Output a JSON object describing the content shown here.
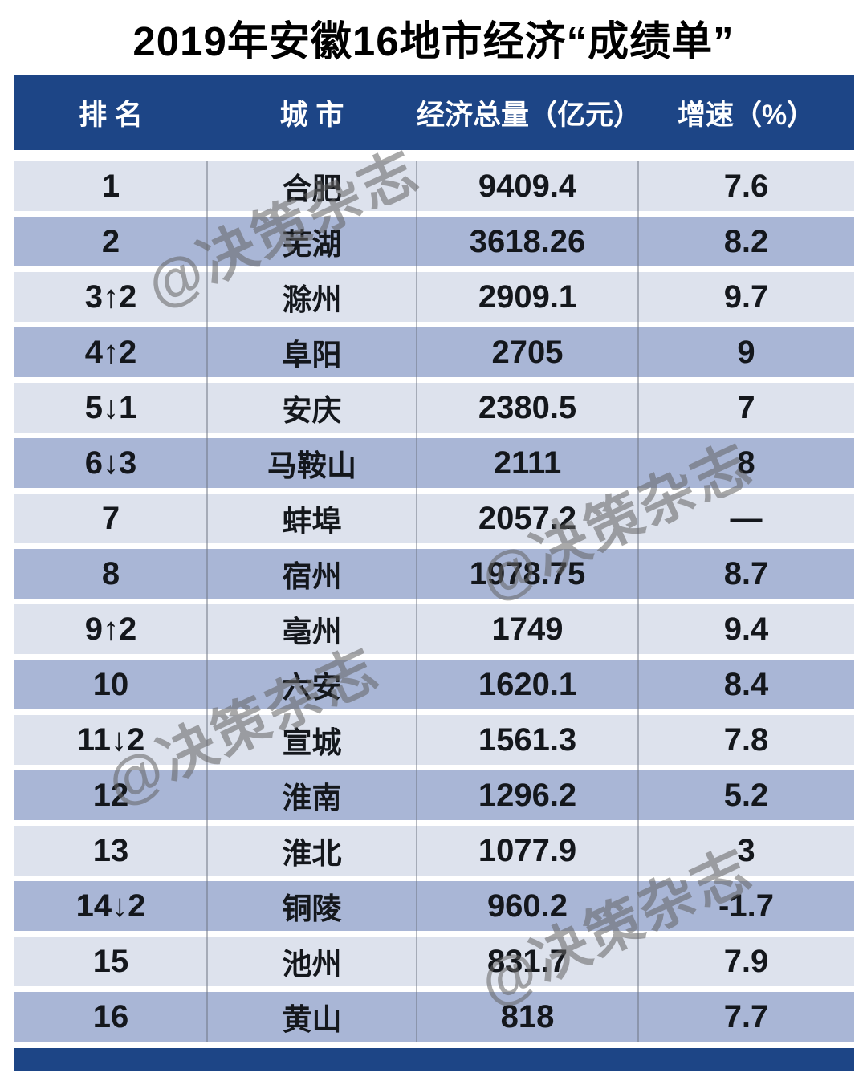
{
  "watermark": {
    "text": "@决策杂志"
  },
  "colors": {
    "header_bg": "#1d4586",
    "footer_bg": "#1d4586",
    "row_light": "#dde2ed",
    "row_dark": "#a9b6d6",
    "header_text": "#ffffff",
    "body_text": "#14171c",
    "title_text": "#000000",
    "watermark_gray": "#a6a6a6",
    "divider_gray": "#6e7382"
  },
  "chart_data": {
    "type": "table",
    "title": "2019年安徽16地市经济“成绩单”",
    "columns": [
      "排 名",
      "城 市",
      "经济总量（亿元）",
      "增速（%）"
    ],
    "column_keys": [
      "rank",
      "city",
      "gdp_100m_yuan",
      "growth_pct"
    ],
    "rows": [
      {
        "rank": "1",
        "city": "合肥",
        "gdp": "9409.4",
        "growth": "7.6"
      },
      {
        "rank": "2",
        "city": "芜湖",
        "gdp": "3618.26",
        "growth": "8.2"
      },
      {
        "rank": "3↑2",
        "city": "滁州",
        "gdp": "2909.1",
        "growth": "9.7"
      },
      {
        "rank": "4↑2",
        "city": "阜阳",
        "gdp": "2705",
        "growth": "9"
      },
      {
        "rank": "5↓1",
        "city": "安庆",
        "gdp": "2380.5",
        "growth": "7"
      },
      {
        "rank": "6↓3",
        "city": "马鞍山",
        "gdp": "2111",
        "growth": "8"
      },
      {
        "rank": "7",
        "city": "蚌埠",
        "gdp": "2057.2",
        "growth": "—"
      },
      {
        "rank": "8",
        "city": "宿州",
        "gdp": "1978.75",
        "growth": "8.7"
      },
      {
        "rank": "9↑2",
        "city": "亳州",
        "gdp": "1749",
        "growth": "9.4"
      },
      {
        "rank": "10",
        "city": "六安",
        "gdp": "1620.1",
        "growth": "8.4"
      },
      {
        "rank": "11↓2",
        "city": "宣城",
        "gdp": "1561.3",
        "growth": "7.8"
      },
      {
        "rank": "12",
        "city": "淮南",
        "gdp": "1296.2",
        "growth": "5.2"
      },
      {
        "rank": "13",
        "city": "淮北",
        "gdp": "1077.9",
        "growth": "3"
      },
      {
        "rank": "14↓2",
        "city": "铜陵",
        "gdp": "960.2",
        "growth": "-1.7"
      },
      {
        "rank": "15",
        "city": "池州",
        "gdp": "831.7",
        "growth": "7.9"
      },
      {
        "rank": "16",
        "city": "黄山",
        "gdp": "818",
        "growth": "7.7"
      }
    ]
  }
}
